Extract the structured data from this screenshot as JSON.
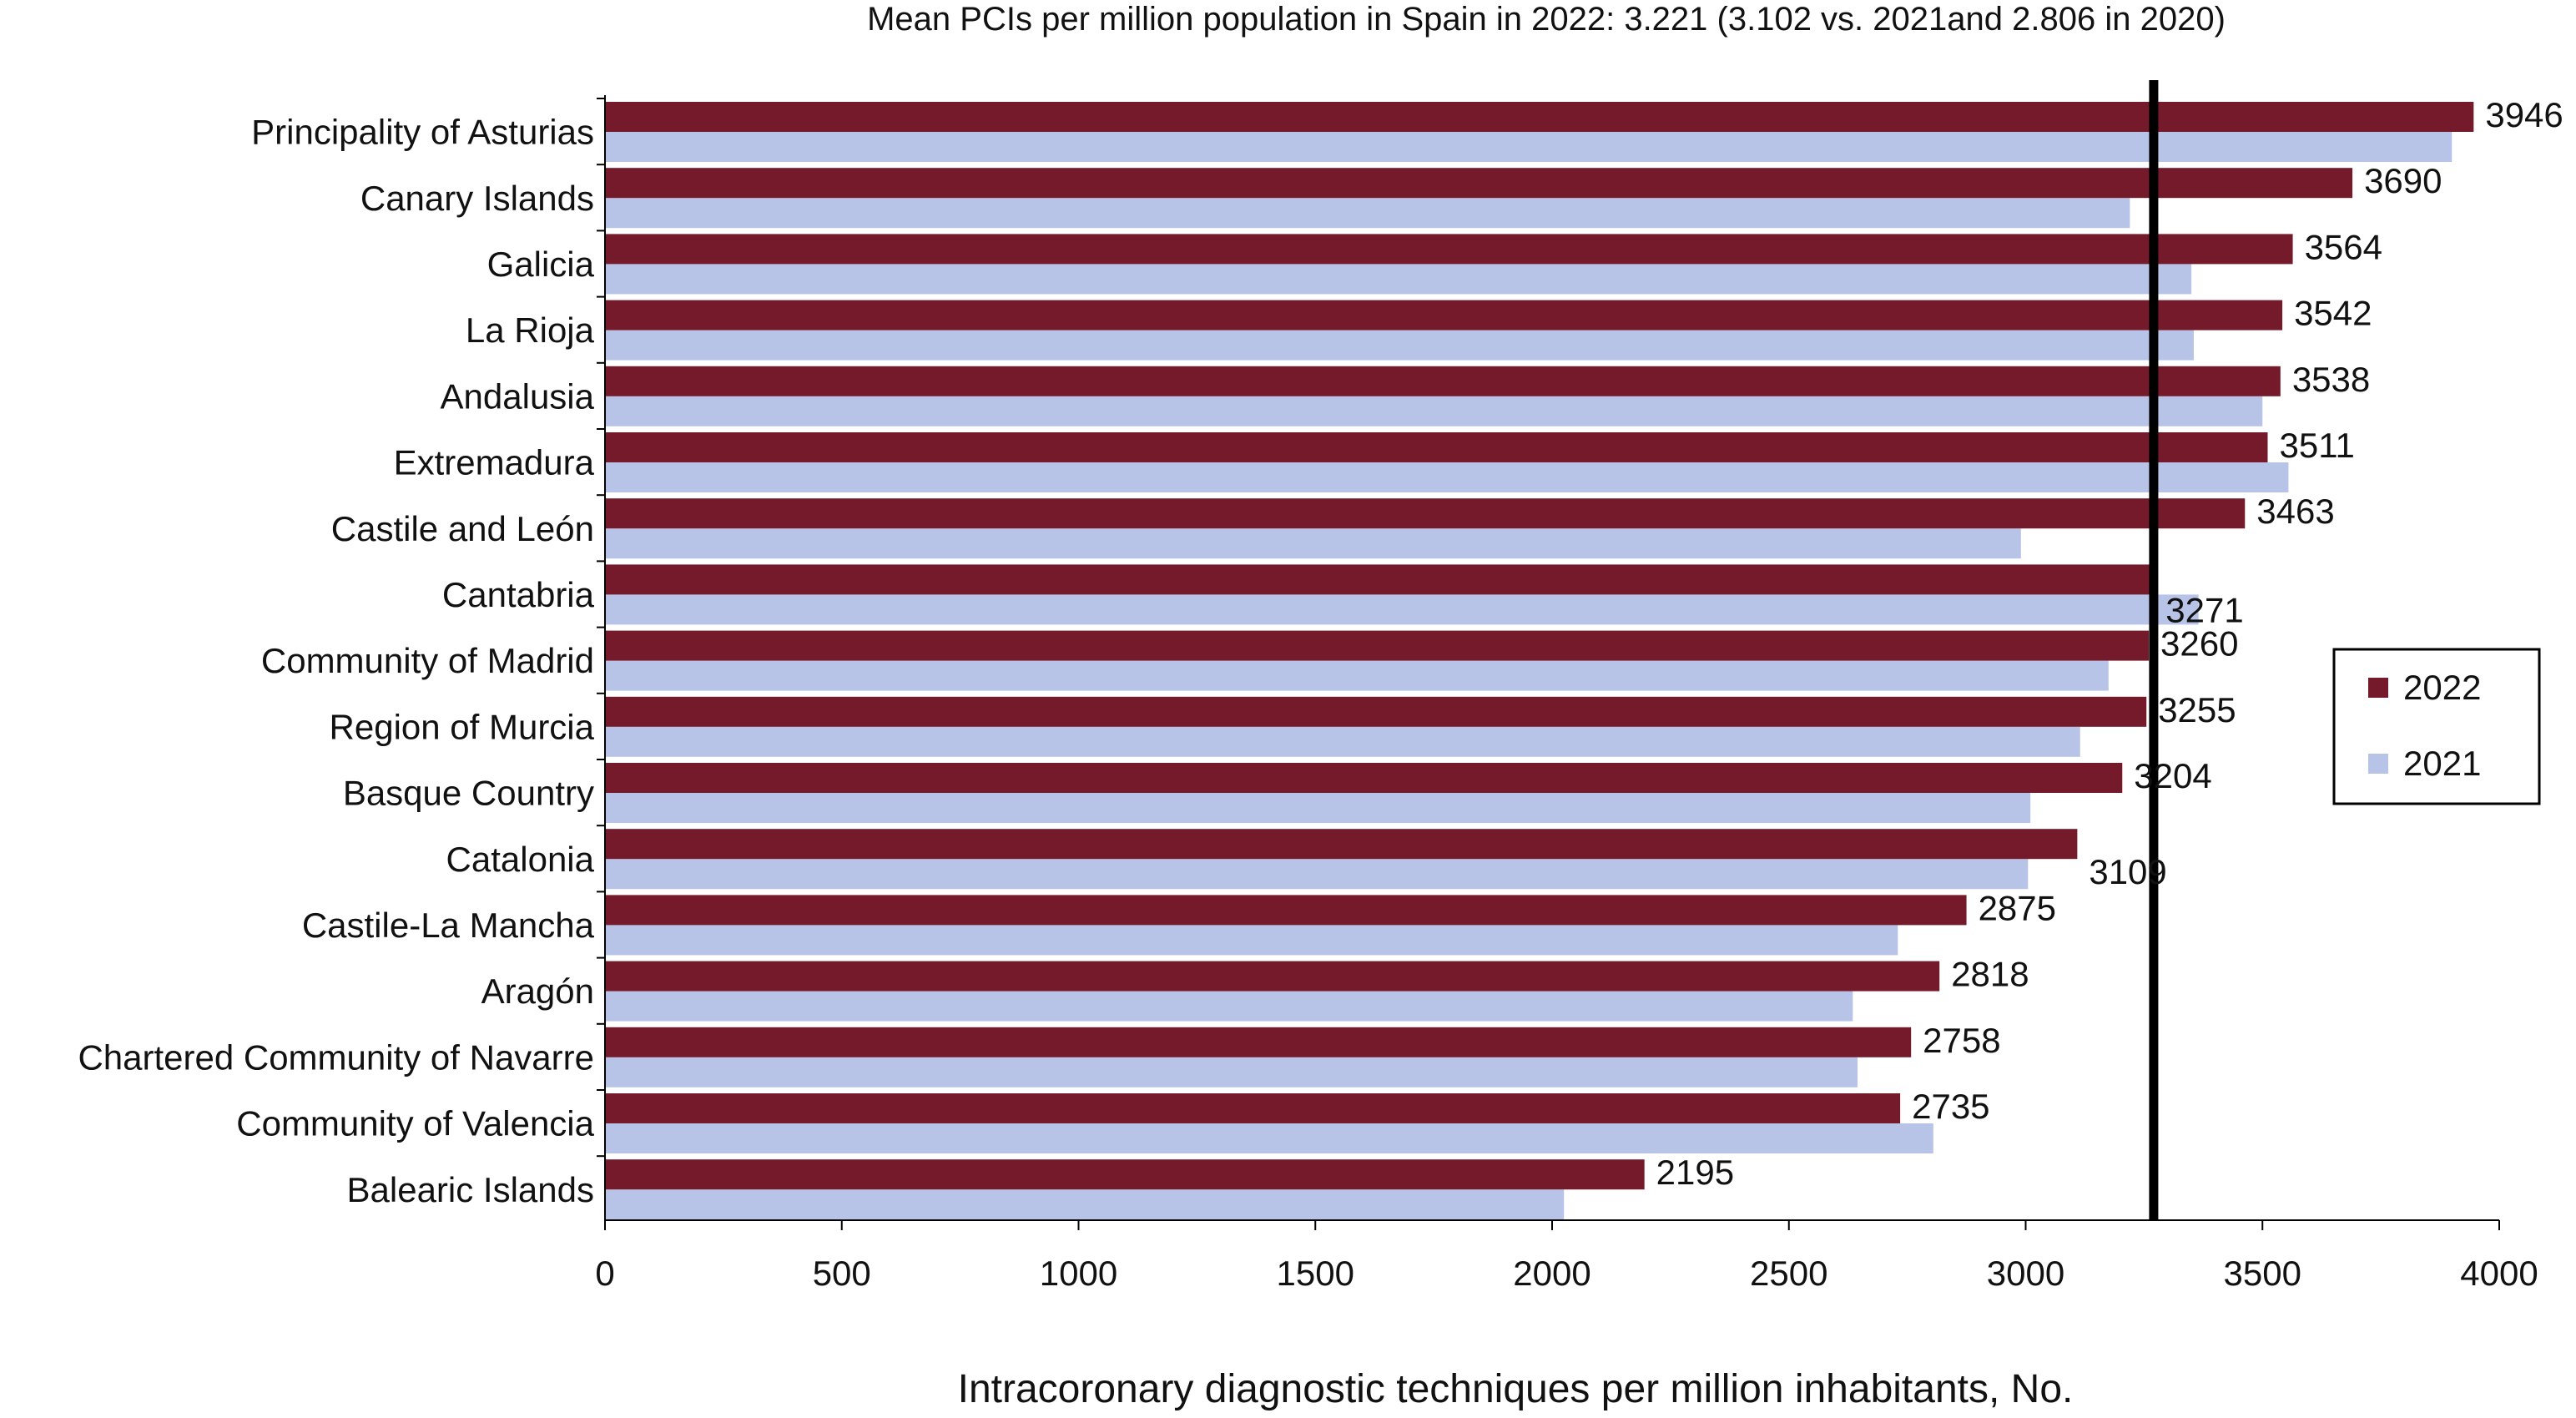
{
  "chart_data": {
    "type": "bar",
    "orientation": "horizontal",
    "title": "Mean PCIs per million population in Spain in 2022: 3.221 (3.102 vs. 2021and 2.806 in 2020)",
    "xlabel": "Intracoronary diagnostic techniques per million inhabitants, No.",
    "ylabel": "",
    "xlim": [
      0,
      4000
    ],
    "xticks": [
      0,
      500,
      1000,
      1500,
      2000,
      2500,
      3000,
      3500,
      4000
    ],
    "reference_line": 3221,
    "legend_position": "right",
    "categories": [
      "Principality of Asturias",
      "Canary Islands",
      "Galicia",
      "La Rioja",
      "Andalusia",
      "Extremadura",
      "Castile and León",
      "Cantabria",
      "Community of Madrid",
      "Region of Murcia",
      "Basque Country",
      "Catalonia",
      "Castile-La Mancha",
      "Aragón",
      "Chartered Community of Navarre",
      "Community of Valencia",
      "Balearic Islands"
    ],
    "series": [
      {
        "name": "2022",
        "color": "#751A2B",
        "values": [
          3946,
          3690,
          3564,
          3542,
          3538,
          3511,
          3463,
          3271,
          3260,
          3255,
          3204,
          3109,
          2875,
          2818,
          2758,
          2735,
          2195
        ]
      },
      {
        "name": "2021",
        "color": "#B7C4E8",
        "values": [
          3900,
          3220,
          3350,
          3355,
          3500,
          3555,
          2990,
          3365,
          3175,
          3115,
          3010,
          3005,
          2730,
          2635,
          2645,
          2805,
          2025
        ]
      }
    ],
    "data_labels": [
      "3946",
      "3690",
      "3564",
      "3542",
      "3538",
      "3511",
      "3463",
      "3271",
      "3260",
      "3255",
      "3204",
      "3109",
      "2875",
      "2818",
      "2758",
      "2735",
      "2195"
    ]
  }
}
